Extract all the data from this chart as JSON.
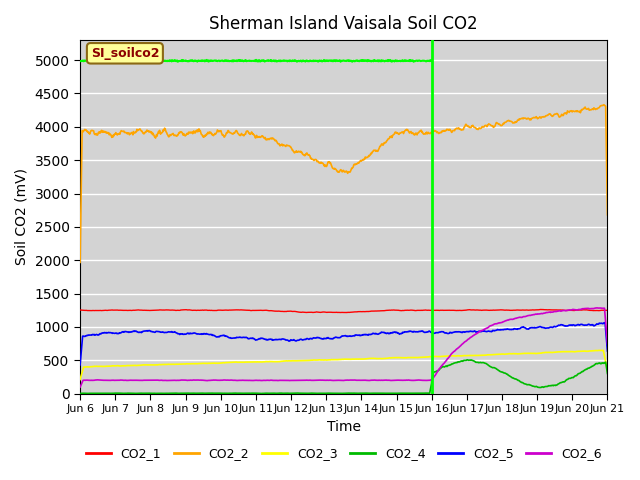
{
  "title": "Sherman Island Vaisala Soil CO2",
  "ylabel": "Soil CO2 (mV)",
  "xlabel": "Time",
  "annotation_text": "SI_soilco2",
  "annotation_box_color": "#ffff99",
  "annotation_text_color": "#8b0000",
  "annotation_border_color": "#8b6914",
  "x_start_day": 6,
  "x_end_day": 21,
  "x_tick_positions": [
    6,
    7,
    8,
    9,
    10,
    11,
    12,
    13,
    14,
    15,
    16,
    17,
    18,
    19,
    20,
    21
  ],
  "x_tick_labels": [
    "Jun 6",
    "Jun 7",
    "Jun 8",
    "Jun 9",
    "Jun 10",
    "Jun 11",
    "Jun 12",
    "Jun 13",
    "Jun 14",
    "Jun 15",
    "Jun 16",
    "Jun 17",
    "Jun 18",
    "Jun 19",
    "Jun 20",
    "Jun 21"
  ],
  "ylim": [
    0,
    5300
  ],
  "yticks": [
    0,
    500,
    1000,
    1500,
    2000,
    2500,
    3000,
    3500,
    4000,
    4500,
    5000
  ],
  "vline_day": 16.0,
  "vline_color": "#00ff00",
  "background_color": "#d3d3d3",
  "grid_color": "#ffffff",
  "series_colors": {
    "CO2_1": "#ff0000",
    "CO2_2": "#ffa500",
    "CO2_3": "#ffff00",
    "CO2_4": "#00bb00",
    "CO2_5": "#0000ff",
    "CO2_6": "#cc00cc"
  },
  "legend_entries": [
    "CO2_1",
    "CO2_2",
    "CO2_3",
    "CO2_4",
    "CO2_5",
    "CO2_6"
  ]
}
